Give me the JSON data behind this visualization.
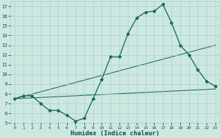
{
  "title": "",
  "xlabel": "Humidex (Indice chaleur)",
  "bg_color": "#cce8e0",
  "grid_color": "#aacccc",
  "line_color": "#1a6a5a",
  "xlim": [
    -0.5,
    23.5
  ],
  "ylim": [
    5,
    17.5
  ],
  "xticks": [
    0,
    1,
    2,
    3,
    4,
    5,
    6,
    7,
    8,
    9,
    10,
    11,
    12,
    13,
    14,
    15,
    16,
    17,
    18,
    19,
    20,
    21,
    22,
    23
  ],
  "yticks": [
    5,
    6,
    7,
    8,
    9,
    10,
    11,
    12,
    13,
    14,
    15,
    16,
    17
  ],
  "line1_x": [
    0,
    1,
    2,
    3,
    4,
    5,
    6,
    7,
    8,
    9,
    10,
    11,
    12,
    13,
    14,
    15,
    16,
    17,
    18,
    19,
    20,
    21,
    22,
    23
  ],
  "line1_y": [
    7.5,
    7.8,
    7.8,
    7.0,
    6.3,
    6.3,
    5.8,
    5.2,
    5.5,
    7.5,
    9.5,
    11.8,
    11.8,
    14.2,
    15.8,
    16.4,
    16.5,
    17.2,
    15.3,
    13.0,
    12.0,
    10.5,
    9.3,
    8.8
  ],
  "line2_x": [
    0,
    23
  ],
  "line2_y": [
    7.5,
    13.0
  ],
  "line3_x": [
    0,
    23
  ],
  "line3_y": [
    7.5,
    8.5
  ]
}
